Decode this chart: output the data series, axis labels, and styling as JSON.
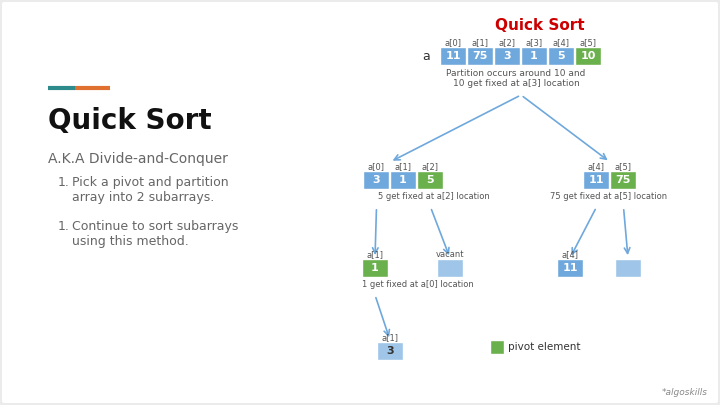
{
  "bg_color": "#ebebeb",
  "slide_bg": "#ffffff",
  "title_left": "Quick Sort",
  "subtitle": "A.K.A Divide-and-Conquer",
  "bullet1": "Pick a pivot and partition\narray into 2 subarrays.",
  "bullet2": "Continue to sort subarrays\nusing this method.",
  "accent_color1": "#2e8b8b",
  "accent_color2": "#e07030",
  "right_title": "Quick Sort",
  "right_title_color": "#cc0000",
  "cell_blue": "#6fa8dc",
  "cell_green": "#6ab04c",
  "cell_blue_light": "#9fc5e8",
  "arrow_color": "#6fa8dc",
  "watermark": "*algoskills"
}
